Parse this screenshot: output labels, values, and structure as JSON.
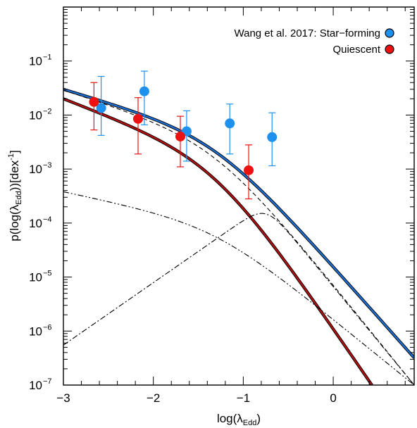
{
  "chart_data": {
    "type": "scatter",
    "x_scale": "linear",
    "y_scale": "log",
    "xlim": [
      -3.0,
      0.9
    ],
    "ylim": [
      1e-07,
      1.0
    ],
    "xlabel_main": "log(λ",
    "xlabel_sub": "Edd",
    "xlabel_end": ")",
    "ylabel_main": "p(log(λ",
    "ylabel_sub": "Edd",
    "ylabel_end": "))[dex",
    "ylabel_sup": "-1",
    "ylabel_close": "]",
    "x_ticks": [
      -3,
      -2,
      -1,
      0
    ],
    "x_tick_labels": [
      "−3",
      "−2",
      "−1",
      "0"
    ],
    "y_ticks": [
      -7,
      -6,
      -5,
      -4,
      -3,
      -2,
      -1
    ],
    "y_tick_base": "10",
    "y_tick_exps": [
      "−7",
      "−6",
      "−5",
      "−4",
      "−3",
      "−2",
      "−1"
    ],
    "legend": [
      {
        "label": "Wang et al. 2017: Star−forming",
        "color": "#1e90ee"
      },
      {
        "label": "Quiescent",
        "color": "#ee1111"
      }
    ],
    "series": [
      {
        "name": "Wang et al. 2017: Star−forming",
        "color": "#1e90ee",
        "points": [
          {
            "x": -2.58,
            "y": 0.0135,
            "ylo": 0.0042,
            "yhi": 0.052
          },
          {
            "x": -2.1,
            "y": 0.0275,
            "ylo": 0.0066,
            "yhi": 0.065
          },
          {
            "x": -1.63,
            "y": 0.005,
            "ylo": 0.0014,
            "yhi": 0.012
          },
          {
            "x": -1.15,
            "y": 0.007,
            "ylo": 0.0019,
            "yhi": 0.016
          },
          {
            "x": -0.68,
            "y": 0.0039,
            "ylo": 0.00115,
            "yhi": 0.011
          }
        ]
      },
      {
        "name": "Quiescent",
        "color": "#ee1111",
        "points": [
          {
            "x": -2.66,
            "y": 0.0175,
            "ylo": 0.0053,
            "yhi": 0.04
          },
          {
            "x": -2.17,
            "y": 0.0085,
            "ylo": 0.0019,
            "yhi": 0.021
          },
          {
            "x": -1.7,
            "y": 0.004,
            "ylo": 0.0011,
            "yhi": 0.0095
          },
          {
            "x": -0.94,
            "y": 0.00095,
            "ylo": 0.00028,
            "yhi": 0.0028
          }
        ]
      }
    ],
    "curves": [
      {
        "name": "star-forming model",
        "color": "#1e6fd0",
        "edge": "#000000",
        "x": [
          -3.0,
          0.9
        ],
        "y": [
          0.03,
          3.2e-07
        ]
      },
      {
        "name": "quiescent model",
        "color": "#b01010",
        "edge": "#000000",
        "x": [
          -3.0,
          0.43
        ],
        "y": [
          0.02,
          1e-07
        ]
      },
      {
        "name": "dashed component",
        "dash": "6,4",
        "x": [
          -3.0,
          0.9
        ],
        "y": [
          0.029,
          1e-07
        ]
      },
      {
        "name": "dash-dot-dot component (power law)",
        "dash": "8,3,2,3,2,3",
        "x": [
          -3.0,
          0.9
        ],
        "y": [
          0.00038,
          1e-07
        ]
      },
      {
        "name": "dash-dot component (peaked)",
        "dash": "8,3,2,3",
        "x": [
          -3.0,
          -0.75,
          0.9
        ],
        "y": [
          5.5e-07,
          0.00022,
          1e-07
        ]
      }
    ]
  }
}
